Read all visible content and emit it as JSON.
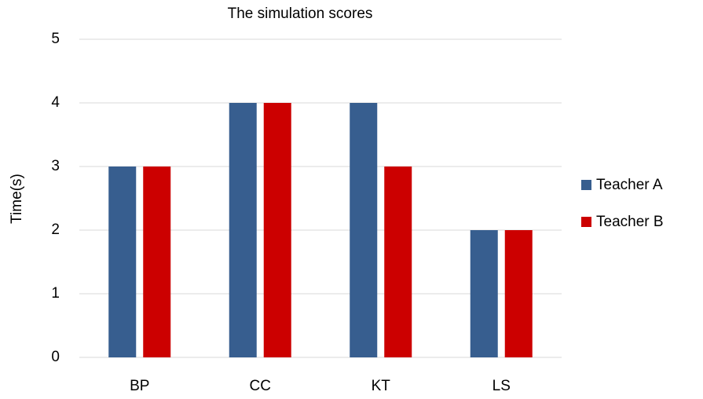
{
  "chart_data": {
    "type": "bar",
    "title": "The simulation scores",
    "y_label": "Time(s)",
    "categories": [
      "BP",
      "CC",
      "KT",
      "LS"
    ],
    "series": [
      {
        "name": "Teacher A",
        "color": "#375e8f",
        "values": [
          3,
          4,
          4,
          2
        ]
      },
      {
        "name": "Teacher B",
        "color": "#cc0000",
        "values": [
          3,
          4,
          3,
          2
        ]
      }
    ],
    "ylim": [
      0,
      5
    ],
    "yticks": [
      0,
      1,
      2,
      3,
      4,
      5
    ],
    "grid": true,
    "legend": "right"
  }
}
